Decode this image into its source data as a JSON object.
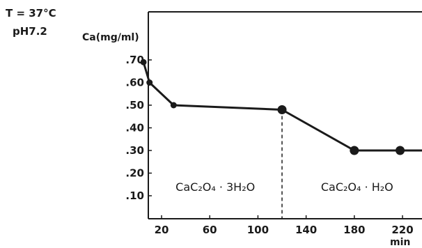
{
  "conditions": {
    "temperature": "T = 37°C",
    "ph": "pH7.2"
  },
  "chart_data": {
    "type": "line",
    "title": "",
    "xlabel": "min",
    "ylabel": "Ca(mg/ml)",
    "xlim": [
      0,
      240
    ],
    "ylim": [
      0,
      0.75
    ],
    "x_ticks": [
      20,
      60,
      100,
      140,
      180,
      220
    ],
    "x_tick_labels": [
      "20",
      "60",
      "100",
      "140",
      "180",
      "220"
    ],
    "y_ticks": [
      0.1,
      0.2,
      0.3,
      0.4,
      0.5,
      0.6,
      0.7
    ],
    "y_tick_labels": [
      ".10",
      ".20",
      ".30",
      ".40",
      ".50",
      ".60",
      ".70"
    ],
    "series": [
      {
        "x": [
          5,
          10,
          30,
          120,
          180,
          218,
          240
        ],
        "y": [
          0.69,
          0.6,
          0.5,
          0.48,
          0.3,
          0.3,
          0.3
        ],
        "markers": [
          true,
          true,
          true,
          true,
          true,
          true,
          false
        ]
      }
    ],
    "phase_boundary_x": 120,
    "phases": [
      {
        "label": "CaC₂O₄ · 3H₂O",
        "x": 60,
        "y": 0.18
      },
      {
        "label": "CaC₂O₄ · H₂O",
        "x": 180,
        "y": 0.18
      }
    ],
    "grid": false,
    "legend": "none"
  }
}
